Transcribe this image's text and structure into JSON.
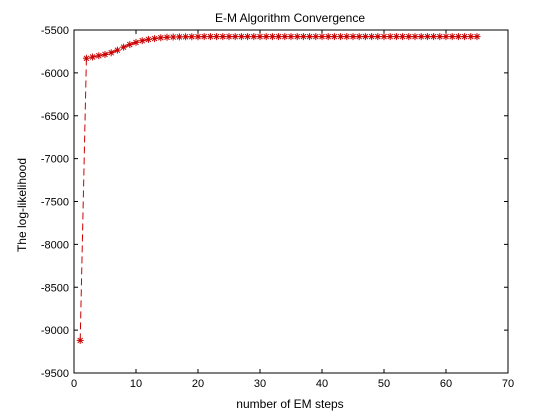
{
  "chart_data": {
    "type": "line",
    "title": "E-M Algorithm Convergence",
    "xlabel": "number of EM steps",
    "ylabel": "The log-likelihood",
    "xlim": [
      0,
      70
    ],
    "ylim": [
      -9500,
      -5500
    ],
    "xticks": [
      0,
      10,
      20,
      30,
      40,
      50,
      60,
      70
    ],
    "yticks": [
      -9500,
      -9000,
      -8500,
      -8000,
      -7500,
      -7000,
      -6500,
      -6000,
      -5500
    ],
    "grid": false,
    "legend": "none",
    "line_style": "dashed",
    "marker": "asterisk",
    "color": "#cc0000",
    "series": [
      {
        "x": [
          1,
          2,
          3,
          4,
          5,
          6,
          7,
          8,
          9,
          10,
          11,
          12,
          13,
          14,
          15,
          16,
          17,
          18,
          19,
          20,
          21,
          22,
          23,
          24,
          25,
          26,
          27,
          28,
          29,
          30,
          31,
          32,
          33,
          34,
          35,
          36,
          37,
          38,
          39,
          40,
          41,
          42,
          43,
          44,
          45,
          46,
          47,
          48,
          49,
          50,
          51,
          52,
          53,
          54,
          55,
          56,
          57,
          58,
          59,
          60,
          61,
          62,
          63,
          64,
          65
        ],
        "values": [
          -9120,
          -5830,
          -5815,
          -5800,
          -5785,
          -5765,
          -5735,
          -5700,
          -5670,
          -5645,
          -5625,
          -5610,
          -5600,
          -5590,
          -5585,
          -5582,
          -5580,
          -5579,
          -5578,
          -5578,
          -5577,
          -5577,
          -5577,
          -5577,
          -5577,
          -5577,
          -5577,
          -5577,
          -5577,
          -5577,
          -5577,
          -5577,
          -5577,
          -5577,
          -5577,
          -5577,
          -5577,
          -5577,
          -5577,
          -5577,
          -5577,
          -5577,
          -5577,
          -5577,
          -5577,
          -5577,
          -5577,
          -5577,
          -5577,
          -5577,
          -5577,
          -5577,
          -5577,
          -5577,
          -5577,
          -5577,
          -5577,
          -5577,
          -5577,
          -5577,
          -5577,
          -5577,
          -5577,
          -5577,
          -5577
        ]
      }
    ]
  }
}
